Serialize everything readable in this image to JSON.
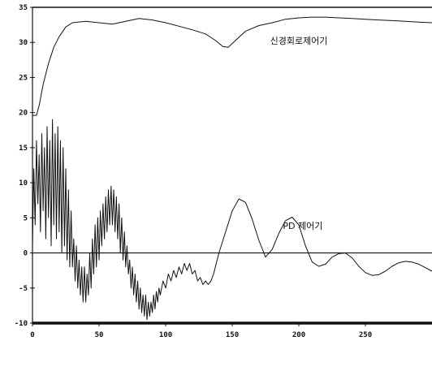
{
  "chart_data": {
    "type": "line",
    "title": "",
    "xlabel": "",
    "ylabel": "",
    "xlim": [
      0,
      300
    ],
    "ylim": [
      -10,
      35
    ],
    "xticks": [
      0,
      50,
      100,
      150,
      200,
      250
    ],
    "yticks": [
      35,
      30,
      25,
      20,
      15,
      10,
      5,
      0,
      -5,
      -10
    ],
    "xtick_labels": [
      "0",
      "50",
      "100",
      "150",
      "200",
      "250"
    ],
    "ytick_labels": [
      "35",
      "30",
      "25",
      "20",
      "15",
      "10",
      "5",
      "0",
      "-5",
      "-10"
    ],
    "grid": false,
    "legend": "none",
    "annotations": [
      {
        "text": "신경회로제어기",
        "x": 200,
        "y": 29.8
      },
      {
        "text": "PD 제어기",
        "x": 203,
        "y": 3.4
      }
    ],
    "series": [
      {
        "points": [
          [
            0,
            19.6
          ],
          [
            3,
            19.6
          ],
          [
            5,
            21
          ],
          [
            8,
            24
          ],
          [
            12,
            27
          ],
          [
            16,
            29.3
          ],
          [
            20,
            30.8
          ],
          [
            25,
            32.2
          ],
          [
            30,
            32.8
          ],
          [
            40,
            33.0
          ],
          [
            50,
            32.8
          ],
          [
            60,
            32.6
          ],
          [
            70,
            33.0
          ],
          [
            80,
            33.4
          ],
          [
            90,
            33.2
          ],
          [
            100,
            32.8
          ],
          [
            110,
            32.3
          ],
          [
            120,
            31.8
          ],
          [
            130,
            31.2
          ],
          [
            138,
            30.2
          ],
          [
            143,
            29.4
          ],
          [
            147,
            29.3
          ],
          [
            152,
            30.2
          ],
          [
            160,
            31.6
          ],
          [
            170,
            32.4
          ],
          [
            180,
            32.8
          ],
          [
            190,
            33.3
          ],
          [
            200,
            33.5
          ],
          [
            210,
            33.6
          ],
          [
            220,
            33.6
          ],
          [
            230,
            33.5
          ],
          [
            240,
            33.4
          ],
          [
            250,
            33.3
          ],
          [
            260,
            33.2
          ],
          [
            270,
            33.1
          ],
          [
            280,
            33.0
          ],
          [
            290,
            32.9
          ],
          [
            300,
            32.8
          ]
        ]
      },
      {
        "points": [
          [
            0,
            1
          ],
          [
            1,
            12
          ],
          [
            2,
            4
          ],
          [
            3,
            16
          ],
          [
            4,
            7
          ],
          [
            5,
            14
          ],
          [
            6,
            3
          ],
          [
            7,
            17
          ],
          [
            8,
            6
          ],
          [
            9,
            15
          ],
          [
            10,
            2
          ],
          [
            11,
            18
          ],
          [
            12,
            5
          ],
          [
            13,
            16
          ],
          [
            14,
            1
          ],
          [
            15,
            19
          ],
          [
            16,
            4
          ],
          [
            17,
            17
          ],
          [
            18,
            2
          ],
          [
            19,
            18
          ],
          [
            20,
            3
          ],
          [
            21,
            16
          ],
          [
            22,
            0
          ],
          [
            23,
            15
          ],
          [
            24,
            1
          ],
          [
            25,
            12
          ],
          [
            26,
            -1
          ],
          [
            27,
            9
          ],
          [
            28,
            -2
          ],
          [
            29,
            6
          ],
          [
            30,
            -2
          ],
          [
            31,
            2
          ],
          [
            32,
            -4
          ],
          [
            33,
            1
          ],
          [
            34,
            -5
          ],
          [
            35,
            -1
          ],
          [
            36,
            -6
          ],
          [
            37,
            -2
          ],
          [
            38,
            -7
          ],
          [
            39,
            -2
          ],
          [
            40,
            -7
          ],
          [
            41,
            -3
          ],
          [
            42,
            -6
          ],
          [
            43,
            0
          ],
          [
            44,
            -5
          ],
          [
            45,
            2
          ],
          [
            46,
            -3
          ],
          [
            47,
            4
          ],
          [
            48,
            -2
          ],
          [
            49,
            5
          ],
          [
            50,
            -1
          ],
          [
            51,
            6
          ],
          [
            52,
            1
          ],
          [
            53,
            7
          ],
          [
            54,
            2
          ],
          [
            55,
            8
          ],
          [
            56,
            3
          ],
          [
            57,
            9
          ],
          [
            58,
            4
          ],
          [
            59,
            9.5
          ],
          [
            60,
            4
          ],
          [
            61,
            9
          ],
          [
            62,
            3
          ],
          [
            63,
            8
          ],
          [
            64,
            2
          ],
          [
            65,
            7
          ],
          [
            66,
            0
          ],
          [
            67,
            5
          ],
          [
            68,
            -1
          ],
          [
            69,
            3
          ],
          [
            70,
            -2
          ],
          [
            71,
            1
          ],
          [
            72,
            -3
          ],
          [
            73,
            -1
          ],
          [
            74,
            -5
          ],
          [
            75,
            -2
          ],
          [
            76,
            -6
          ],
          [
            77,
            -3
          ],
          [
            78,
            -7
          ],
          [
            79,
            -4
          ],
          [
            80,
            -8
          ],
          [
            81,
            -5
          ],
          [
            82,
            -8.5
          ],
          [
            83,
            -6
          ],
          [
            84,
            -9
          ],
          [
            85,
            -6
          ],
          [
            86,
            -9.5
          ],
          [
            87,
            -7
          ],
          [
            88,
            -9
          ],
          [
            89,
            -7
          ],
          [
            90,
            -8.5
          ],
          [
            91,
            -6
          ],
          [
            92,
            -8
          ],
          [
            93,
            -5.5
          ],
          [
            94,
            -7
          ],
          [
            95,
            -5
          ],
          [
            96,
            -6
          ],
          [
            98,
            -4
          ],
          [
            100,
            -5
          ],
          [
            102,
            -3
          ],
          [
            104,
            -4
          ],
          [
            106,
            -2.5
          ],
          [
            108,
            -3.5
          ],
          [
            110,
            -2
          ],
          [
            112,
            -3
          ],
          [
            114,
            -1.5
          ],
          [
            116,
            -2.5
          ],
          [
            118,
            -1.5
          ],
          [
            120,
            -3
          ],
          [
            122,
            -2.5
          ],
          [
            124,
            -4
          ],
          [
            126,
            -3.5
          ],
          [
            128,
            -4.5
          ],
          [
            130,
            -4
          ],
          [
            132,
            -4.5
          ],
          [
            134,
            -4
          ],
          [
            136,
            -3
          ],
          [
            140,
            0
          ],
          [
            145,
            3
          ],
          [
            150,
            6
          ],
          [
            155,
            7.7
          ],
          [
            160,
            7.2
          ],
          [
            165,
            4.8
          ],
          [
            170,
            1.8
          ],
          [
            175,
            -0.6
          ],
          [
            180,
            0.5
          ],
          [
            185,
            2.8
          ],
          [
            190,
            4.6
          ],
          [
            195,
            5.1
          ],
          [
            200,
            4
          ],
          [
            205,
            1
          ],
          [
            210,
            -1.3
          ],
          [
            215,
            -1.9
          ],
          [
            220,
            -1.6
          ],
          [
            225,
            -0.6
          ],
          [
            230,
            -0.1
          ],
          [
            235,
            0
          ],
          [
            240,
            -0.7
          ],
          [
            245,
            -1.9
          ],
          [
            250,
            -2.8
          ],
          [
            255,
            -3.2
          ],
          [
            260,
            -3.1
          ],
          [
            265,
            -2.6
          ],
          [
            270,
            -1.9
          ],
          [
            275,
            -1.4
          ],
          [
            280,
            -1.2
          ],
          [
            285,
            -1.3
          ],
          [
            290,
            -1.6
          ],
          [
            295,
            -2.1
          ],
          [
            300,
            -2.6
          ]
        ]
      }
    ]
  }
}
